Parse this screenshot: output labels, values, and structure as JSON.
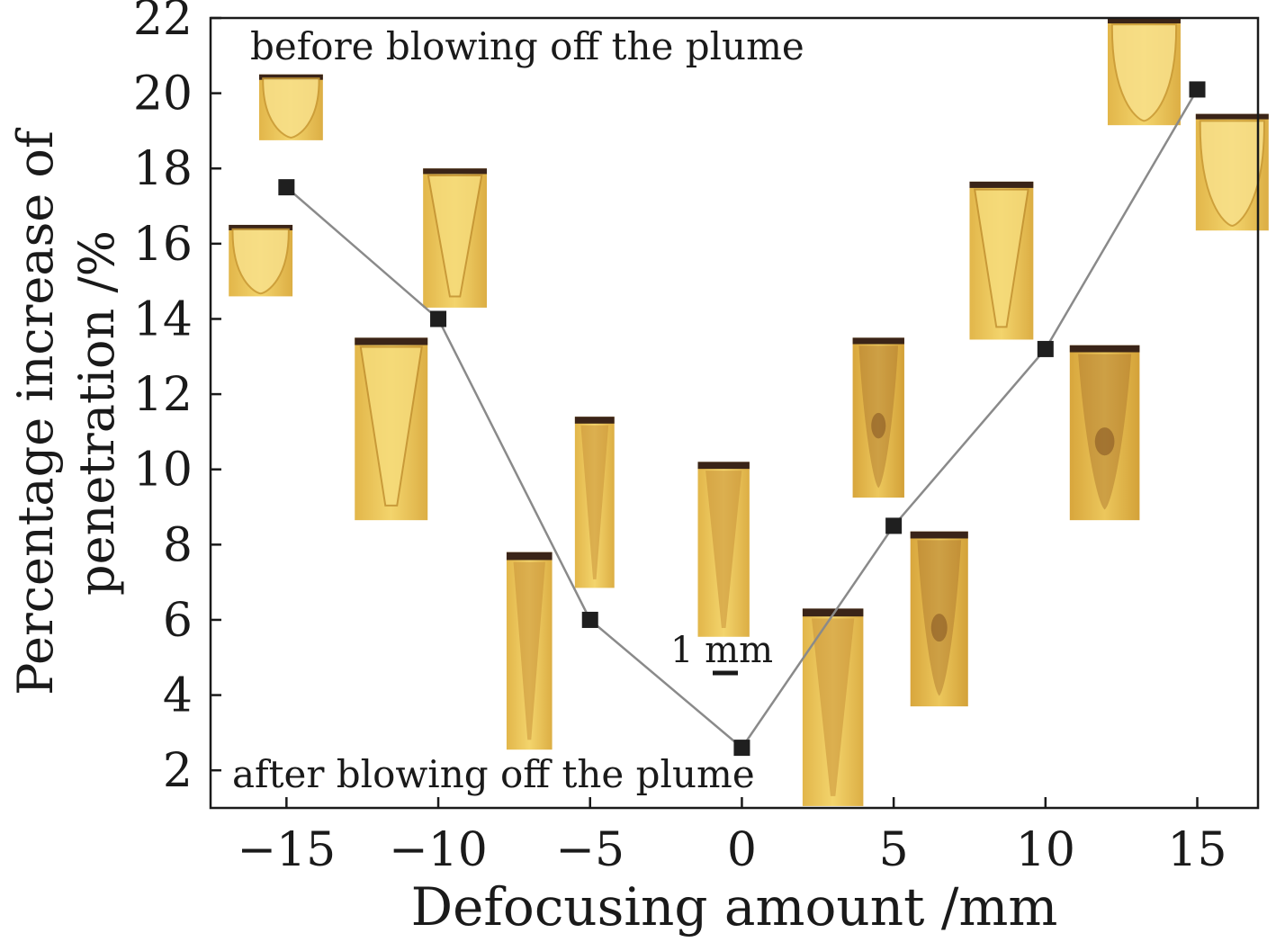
{
  "chart_data": {
    "type": "line",
    "title": "",
    "xlabel": "Defocusing amount /mm",
    "ylabel_lines": [
      "Percentage increase of",
      "penetration /%"
    ],
    "xlim": [
      -17.5,
      17
    ],
    "ylim": [
      1,
      22
    ],
    "x_ticks": [
      -15,
      -10,
      -5,
      0,
      5,
      10,
      15
    ],
    "x_tick_labels": [
      "−15",
      "−10",
      "−5",
      "0",
      "5",
      "10",
      "15"
    ],
    "y_ticks": [
      2,
      4,
      6,
      8,
      10,
      12,
      14,
      16,
      18,
      20,
      22
    ],
    "y_tick_labels": [
      "2",
      "4",
      "6",
      "8",
      "10",
      "12",
      "14",
      "16",
      "18",
      "20",
      "22"
    ],
    "series": [
      {
        "x": [
          -15,
          -10,
          -5,
          0,
          5,
          10,
          15
        ],
        "y": [
          17.5,
          14.0,
          6.0,
          2.6,
          8.5,
          13.2,
          20.1
        ]
      }
    ],
    "annotations": {
      "top": "before blowing off the plume",
      "bottom": "after blowing off the plume",
      "scale_bar": "1 mm"
    },
    "micrographs": [
      {
        "x": -16.9,
        "y_top": 16.5,
        "x_w": 2.1,
        "y_h": 1.9,
        "shape": "bowl"
      },
      {
        "x": -15.9,
        "y_top": 20.5,
        "x_w": 2.1,
        "y_h": 1.75,
        "shape": "bowl"
      },
      {
        "x": -10.5,
        "y_top": 18.0,
        "x_w": 2.1,
        "y_h": 3.7,
        "shape": "v"
      },
      {
        "x": -12.75,
        "y_top": 13.5,
        "x_w": 2.4,
        "y_h": 4.85,
        "shape": "v"
      },
      {
        "x": -7.75,
        "y_top": 7.8,
        "x_w": 1.5,
        "y_h": 5.25,
        "shape": "spike"
      },
      {
        "x": -5.5,
        "y_top": 11.4,
        "x_w": 1.3,
        "y_h": 4.55,
        "shape": "spike"
      },
      {
        "x": -1.45,
        "y_top": 10.2,
        "x_w": 1.7,
        "y_h": 4.65,
        "shape": "spike"
      },
      {
        "x": 2.0,
        "y_top": 6.3,
        "x_w": 2.0,
        "y_h": 5.25,
        "shape": "spike"
      },
      {
        "x": 3.65,
        "y_top": 13.5,
        "x_w": 1.7,
        "y_h": 4.25,
        "shape": "dark"
      },
      {
        "x": 5.55,
        "y_top": 8.35,
        "x_w": 1.9,
        "y_h": 4.65,
        "shape": "dark"
      },
      {
        "x": 7.5,
        "y_top": 17.65,
        "x_w": 2.1,
        "y_h": 4.2,
        "shape": "v"
      },
      {
        "x": 10.8,
        "y_top": 13.3,
        "x_w": 2.3,
        "y_h": 4.65,
        "shape": "dark"
      },
      {
        "x": 12.05,
        "y_top": 22.0,
        "x_w": 2.4,
        "y_h": 2.85,
        "shape": "round"
      },
      {
        "x": 14.95,
        "y_top": 19.45,
        "x_w": 2.4,
        "y_h": 3.1,
        "shape": "round"
      }
    ],
    "colors": {
      "line": "#8a8a8a",
      "marker": "#1f1f1f",
      "micrograph_light": "#f2cf63",
      "micrograph_mid": "#d9a93e",
      "micrograph_dark": "#3a2418"
    }
  }
}
